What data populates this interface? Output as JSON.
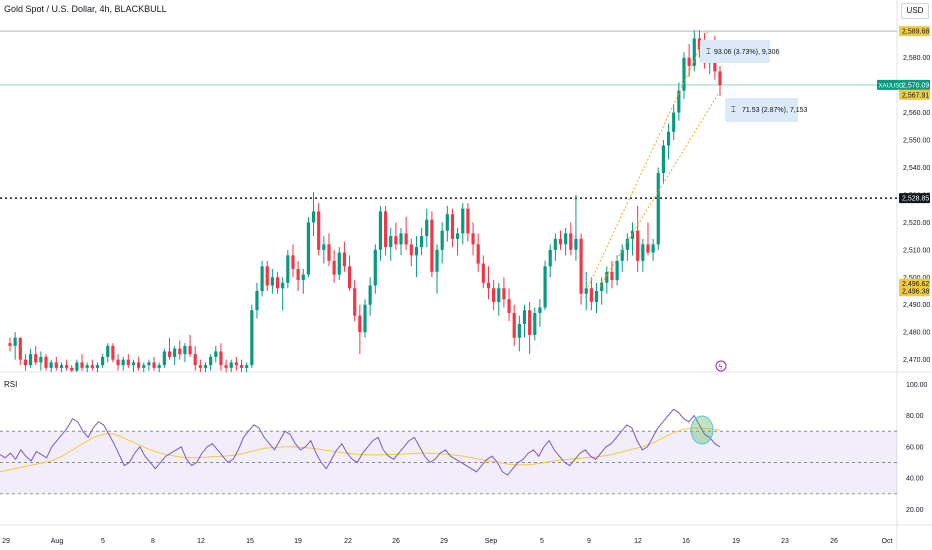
{
  "header": {
    "title": "Gold Spot / U.S. Dollar, 4h, BLACKBULL",
    "currency_button": "USD"
  },
  "rsi_panel": {
    "label": "RSI",
    "ticks": [
      "100.00",
      "80.00",
      "60.00",
      "40.00",
      "20.00"
    ]
  },
  "x_axis": {
    "ticks": [
      "29",
      "Aug",
      "5",
      "8",
      "12",
      "15",
      "19",
      "22",
      "26",
      "29",
      "Sep",
      "5",
      "9",
      "12",
      "16",
      "19",
      "23",
      "26",
      "Oct"
    ]
  },
  "chart_data": {
    "type": "candlestick",
    "symbol": "XAUUSD",
    "y_ticks": [
      2580,
      2570,
      2560,
      2550,
      2540,
      2530,
      2520,
      2510,
      2500,
      2490,
      2480,
      2470
    ],
    "y_tick_labels": [
      "2,580.00",
      "2,570.00",
      "2,560.00",
      "2,550.00",
      "2,540.00",
      "2,530.00",
      "2,520.00",
      "2,510.00",
      "2,500.00",
      "2,490.00",
      "2,480.00",
      "2,470.00"
    ],
    "ylim": [
      2465.5,
      2593
    ],
    "price_labels": [
      {
        "value": "2,589.68",
        "price": 2589.68,
        "style": "high",
        "color": "#f5c842"
      },
      {
        "value": "2,570.09",
        "price": 2570.09,
        "style": "last",
        "color": "#089981",
        "tag": "XAUUSD"
      },
      {
        "value": "2,567.91",
        "price": 2567.91,
        "style": "alt",
        "color": "#f5c842"
      },
      {
        "value": "2,528.85",
        "price": 2528.85,
        "style": "line",
        "color": "#131722"
      },
      {
        "value": "2,496.62",
        "price": 2496.62,
        "style": "low",
        "color": "#f5c842"
      },
      {
        "value": "2,496.38",
        "price": 2496.38,
        "style": "low",
        "color": "#f5c842"
      }
    ],
    "horizontal_lines": [
      {
        "price": 2589.68,
        "style": "solid",
        "color": "#b2b5be"
      },
      {
        "price": 2570.09,
        "style": "solid",
        "color": "#8fd3c7"
      },
      {
        "price": 2528.85,
        "style": "dotted",
        "color": "#131722"
      }
    ],
    "measure_labels": [
      {
        "text": "93.06 (3.73%), 9,306"
      },
      {
        "text": "71.53 (2.87%), 7,153"
      }
    ],
    "candles": [
      [
        2476,
        2478,
        2473,
        2475
      ],
      [
        2475,
        2480,
        2470,
        2478
      ],
      [
        2478,
        2478,
        2468,
        2470
      ],
      [
        2470,
        2472,
        2466,
        2468
      ],
      [
        2468,
        2474,
        2467,
        2472
      ],
      [
        2472,
        2475,
        2468,
        2469
      ],
      [
        2469,
        2473,
        2466,
        2471
      ],
      [
        2471,
        2472,
        2466,
        2467
      ],
      [
        2467,
        2470,
        2465,
        2469
      ],
      [
        2469,
        2471,
        2466,
        2467
      ],
      [
        2467,
        2469,
        2465,
        2468
      ],
      [
        2468,
        2470,
        2466,
        2467
      ],
      [
        2467,
        2468,
        2465,
        2466
      ],
      [
        2466,
        2470,
        2465,
        2469
      ],
      [
        2469,
        2472,
        2466,
        2467
      ],
      [
        2467,
        2469,
        2465,
        2468
      ],
      [
        2468,
        2470,
        2466,
        2467
      ],
      [
        2467,
        2469,
        2465,
        2468
      ],
      [
        2468,
        2472,
        2467,
        2471
      ],
      [
        2471,
        2476,
        2469,
        2475
      ],
      [
        2475,
        2476,
        2469,
        2470
      ],
      [
        2470,
        2472,
        2466,
        2468
      ],
      [
        2468,
        2471,
        2466,
        2470
      ],
      [
        2470,
        2472,
        2467,
        2468
      ],
      [
        2468,
        2470,
        2465,
        2469
      ],
      [
        2469,
        2471,
        2466,
        2467
      ],
      [
        2467,
        2469,
        2465,
        2468
      ],
      [
        2468,
        2470,
        2466,
        2469
      ],
      [
        2469,
        2471,
        2466,
        2467
      ],
      [
        2467,
        2469,
        2465,
        2468
      ],
      [
        2468,
        2474,
        2467,
        2473
      ],
      [
        2473,
        2478,
        2470,
        2471
      ],
      [
        2471,
        2475,
        2468,
        2474
      ],
      [
        2474,
        2477,
        2470,
        2472
      ],
      [
        2472,
        2476,
        2469,
        2475
      ],
      [
        2475,
        2479,
        2471,
        2472
      ],
      [
        2472,
        2475,
        2466,
        2468
      ],
      [
        2468,
        2470,
        2465,
        2467
      ],
      [
        2467,
        2469,
        2465,
        2468
      ],
      [
        2468,
        2472,
        2466,
        2471
      ],
      [
        2471,
        2475,
        2469,
        2473
      ],
      [
        2473,
        2476,
        2466,
        2468
      ],
      [
        2468,
        2470,
        2465,
        2467
      ],
      [
        2467,
        2470,
        2465,
        2469
      ],
      [
        2469,
        2471,
        2466,
        2468
      ],
      [
        2468,
        2470,
        2465,
        2467
      ],
      [
        2467,
        2469,
        2465,
        2468
      ],
      [
        2468,
        2490,
        2467,
        2488
      ],
      [
        2488,
        2498,
        2485,
        2495
      ],
      [
        2495,
        2506,
        2493,
        2504
      ],
      [
        2504,
        2506,
        2495,
        2497
      ],
      [
        2497,
        2503,
        2494,
        2500
      ],
      [
        2500,
        2502,
        2494,
        2496
      ],
      [
        2496,
        2500,
        2488,
        2498
      ],
      [
        2498,
        2510,
        2496,
        2508
      ],
      [
        2508,
        2512,
        2500,
        2503
      ],
      [
        2503,
        2506,
        2495,
        2499
      ],
      [
        2499,
        2503,
        2494,
        2501
      ],
      [
        2501,
        2522,
        2500,
        2520
      ],
      [
        2520,
        2531,
        2515,
        2524
      ],
      [
        2524,
        2527,
        2508,
        2510
      ],
      [
        2510,
        2515,
        2505,
        2512
      ],
      [
        2512,
        2516,
        2504,
        2506
      ],
      [
        2506,
        2510,
        2498,
        2501
      ],
      [
        2501,
        2511,
        2499,
        2509
      ],
      [
        2509,
        2513,
        2502,
        2504
      ],
      [
        2504,
        2508,
        2495,
        2496
      ],
      [
        2496,
        2499,
        2484,
        2486
      ],
      [
        2486,
        2490,
        2472,
        2480
      ],
      [
        2480,
        2492,
        2478,
        2490
      ],
      [
        2490,
        2500,
        2486,
        2497
      ],
      [
        2497,
        2512,
        2494,
        2510
      ],
      [
        2510,
        2526,
        2506,
        2524
      ],
      [
        2524,
        2526,
        2508,
        2511
      ],
      [
        2511,
        2518,
        2506,
        2515
      ],
      [
        2515,
        2520,
        2510,
        2512
      ],
      [
        2512,
        2518,
        2508,
        2516
      ],
      [
        2516,
        2522,
        2510,
        2512
      ],
      [
        2512,
        2514,
        2504,
        2508
      ],
      [
        2508,
        2515,
        2500,
        2511
      ],
      [
        2511,
        2518,
        2508,
        2515
      ],
      [
        2515,
        2525,
        2511,
        2521
      ],
      [
        2521,
        2524,
        2500,
        2502
      ],
      [
        2502,
        2512,
        2494,
        2510
      ],
      [
        2510,
        2520,
        2505,
        2517
      ],
      [
        2517,
        2526,
        2513,
        2523
      ],
      [
        2523,
        2525,
        2511,
        2514
      ],
      [
        2514,
        2518,
        2508,
        2516
      ],
      [
        2516,
        2527,
        2512,
        2525
      ],
      [
        2525,
        2527,
        2513,
        2516
      ],
      [
        2516,
        2520,
        2508,
        2512
      ],
      [
        2512,
        2516,
        2502,
        2505
      ],
      [
        2505,
        2508,
        2496,
        2498
      ],
      [
        2498,
        2504,
        2492,
        2496
      ],
      [
        2496,
        2499,
        2488,
        2491
      ],
      [
        2491,
        2498,
        2486,
        2496
      ],
      [
        2496,
        2500,
        2489,
        2492
      ],
      [
        2492,
        2496,
        2484,
        2487
      ],
      [
        2487,
        2490,
        2475,
        2478
      ],
      [
        2478,
        2486,
        2473,
        2483
      ],
      [
        2483,
        2490,
        2478,
        2488
      ],
      [
        2488,
        2491,
        2472,
        2479
      ],
      [
        2479,
        2489,
        2477,
        2487
      ],
      [
        2487,
        2492,
        2482,
        2489
      ],
      [
        2489,
        2506,
        2488,
        2504
      ],
      [
        2504,
        2512,
        2500,
        2510
      ],
      [
        2510,
        2516,
        2506,
        2514
      ],
      [
        2514,
        2517,
        2510,
        2512
      ],
      [
        2512,
        2518,
        2508,
        2516
      ],
      [
        2516,
        2520,
        2508,
        2510
      ],
      [
        2510,
        2530,
        2506,
        2514
      ],
      [
        2514,
        2516,
        2490,
        2494
      ],
      [
        2494,
        2502,
        2488,
        2496
      ],
      [
        2496,
        2500,
        2488,
        2491
      ],
      [
        2491,
        2498,
        2487,
        2495
      ],
      [
        2495,
        2500,
        2490,
        2498
      ],
      [
        2498,
        2504,
        2494,
        2502
      ],
      [
        2502,
        2506,
        2496,
        2499
      ],
      [
        2499,
        2508,
        2497,
        2506
      ],
      [
        2506,
        2512,
        2502,
        2510
      ],
      [
        2510,
        2516,
        2506,
        2514
      ],
      [
        2514,
        2520,
        2508,
        2517
      ],
      [
        2517,
        2526,
        2502,
        2506
      ],
      [
        2506,
        2514,
        2502,
        2512
      ],
      [
        2512,
        2520,
        2508,
        2509
      ],
      [
        2509,
        2514,
        2506,
        2512
      ],
      [
        2512,
        2540,
        2510,
        2538
      ],
      [
        2538,
        2550,
        2534,
        2548
      ],
      [
        2548,
        2556,
        2543,
        2553
      ],
      [
        2553,
        2563,
        2550,
        2560
      ],
      [
        2560,
        2571,
        2557,
        2568
      ],
      [
        2568,
        2582,
        2565,
        2580
      ],
      [
        2580,
        2585,
        2573,
        2577
      ],
      [
        2577,
        2590,
        2575,
        2587
      ],
      [
        2587,
        2590,
        2580,
        2583
      ],
      [
        2583,
        2589,
        2576,
        2578
      ],
      [
        2578,
        2586,
        2574,
        2584
      ],
      [
        2584,
        2588,
        2572,
        2575
      ],
      [
        2575,
        2577,
        2566,
        2570
      ]
    ],
    "rsi_values": [
      55,
      53,
      56,
      52,
      58,
      54,
      51,
      57,
      55,
      53,
      60,
      64,
      68,
      72,
      78,
      76,
      70,
      66,
      72,
      76,
      74,
      68,
      62,
      55,
      48,
      50,
      56,
      60,
      54,
      50,
      46,
      50,
      54,
      56,
      58,
      60,
      52,
      48,
      50,
      56,
      60,
      62,
      58,
      54,
      50,
      52,
      58,
      66,
      70,
      74,
      72,
      66,
      62,
      58,
      64,
      70,
      68,
      62,
      58,
      60,
      64,
      56,
      50,
      46,
      52,
      58,
      62,
      56,
      52,
      50,
      56,
      60,
      64,
      66,
      58,
      54,
      52,
      56,
      60,
      64,
      66,
      60,
      54,
      50,
      52,
      56,
      58,
      54,
      52,
      50,
      48,
      46,
      44,
      48,
      52,
      54,
      50,
      44,
      42,
      46,
      50,
      52,
      56,
      58,
      54,
      60,
      64,
      58,
      54,
      50,
      48,
      52,
      56,
      58,
      54,
      52,
      56,
      60,
      62,
      66,
      70,
      74,
      72,
      64,
      58,
      60,
      66,
      72,
      76,
      80,
      84,
      82,
      78,
      76,
      80,
      74,
      68,
      66,
      62,
      60
    ],
    "rsi_ma_values": [
      44,
      44.7,
      45.4,
      46.1,
      46.8,
      47.5,
      48.2,
      48.9,
      49.6,
      50.3,
      51,
      52.5,
      54,
      56,
      58,
      60,
      62,
      64,
      66,
      67,
      68,
      68.5,
      68,
      67,
      65.5,
      64,
      62.5,
      61,
      59.5,
      58,
      57,
      56,
      55,
      54.5,
      54,
      53.5,
      53,
      53,
      53,
      53.2,
      53.4,
      53.6,
      53.8,
      54,
      54.2,
      54.5,
      55,
      55.8,
      56.6,
      57.4,
      58.2,
      59,
      59.4,
      59.6,
      59.8,
      60,
      60,
      59.8,
      59.6,
      59.4,
      59.2,
      58.8,
      58.3,
      57.8,
      57.3,
      56.8,
      56.3,
      55.9,
      55.5,
      55.2,
      55,
      54.9,
      54.8,
      54.8,
      54.9,
      55,
      55.1,
      55.2,
      55.4,
      55.6,
      55.8,
      56,
      56,
      55.9,
      55.7,
      55.5,
      55.3,
      55,
      54.6,
      54.2,
      53.7,
      53.1,
      52.4,
      51.8,
      51.2,
      50.7,
      50.2,
      49.6,
      49,
      48.6,
      48.4,
      48.4,
      48.6,
      48.9,
      49.3,
      49.8,
      50.4,
      51,
      51.4,
      51.7,
      52,
      52.3,
      52.6,
      52.9,
      53.2,
      53.5,
      53.9,
      54.4,
      55,
      55.8,
      56.7,
      57.6,
      58.4,
      59.2,
      60.1,
      61.2,
      62.5,
      64,
      65.7,
      67.4,
      68.9,
      70.2,
      71.2,
      71.8,
      72,
      72,
      71.8,
      71.5,
      71.1,
      70.6
    ],
    "rsi_ylim": [
      10,
      104
    ],
    "rsi_levels": [
      70,
      50,
      30
    ]
  }
}
